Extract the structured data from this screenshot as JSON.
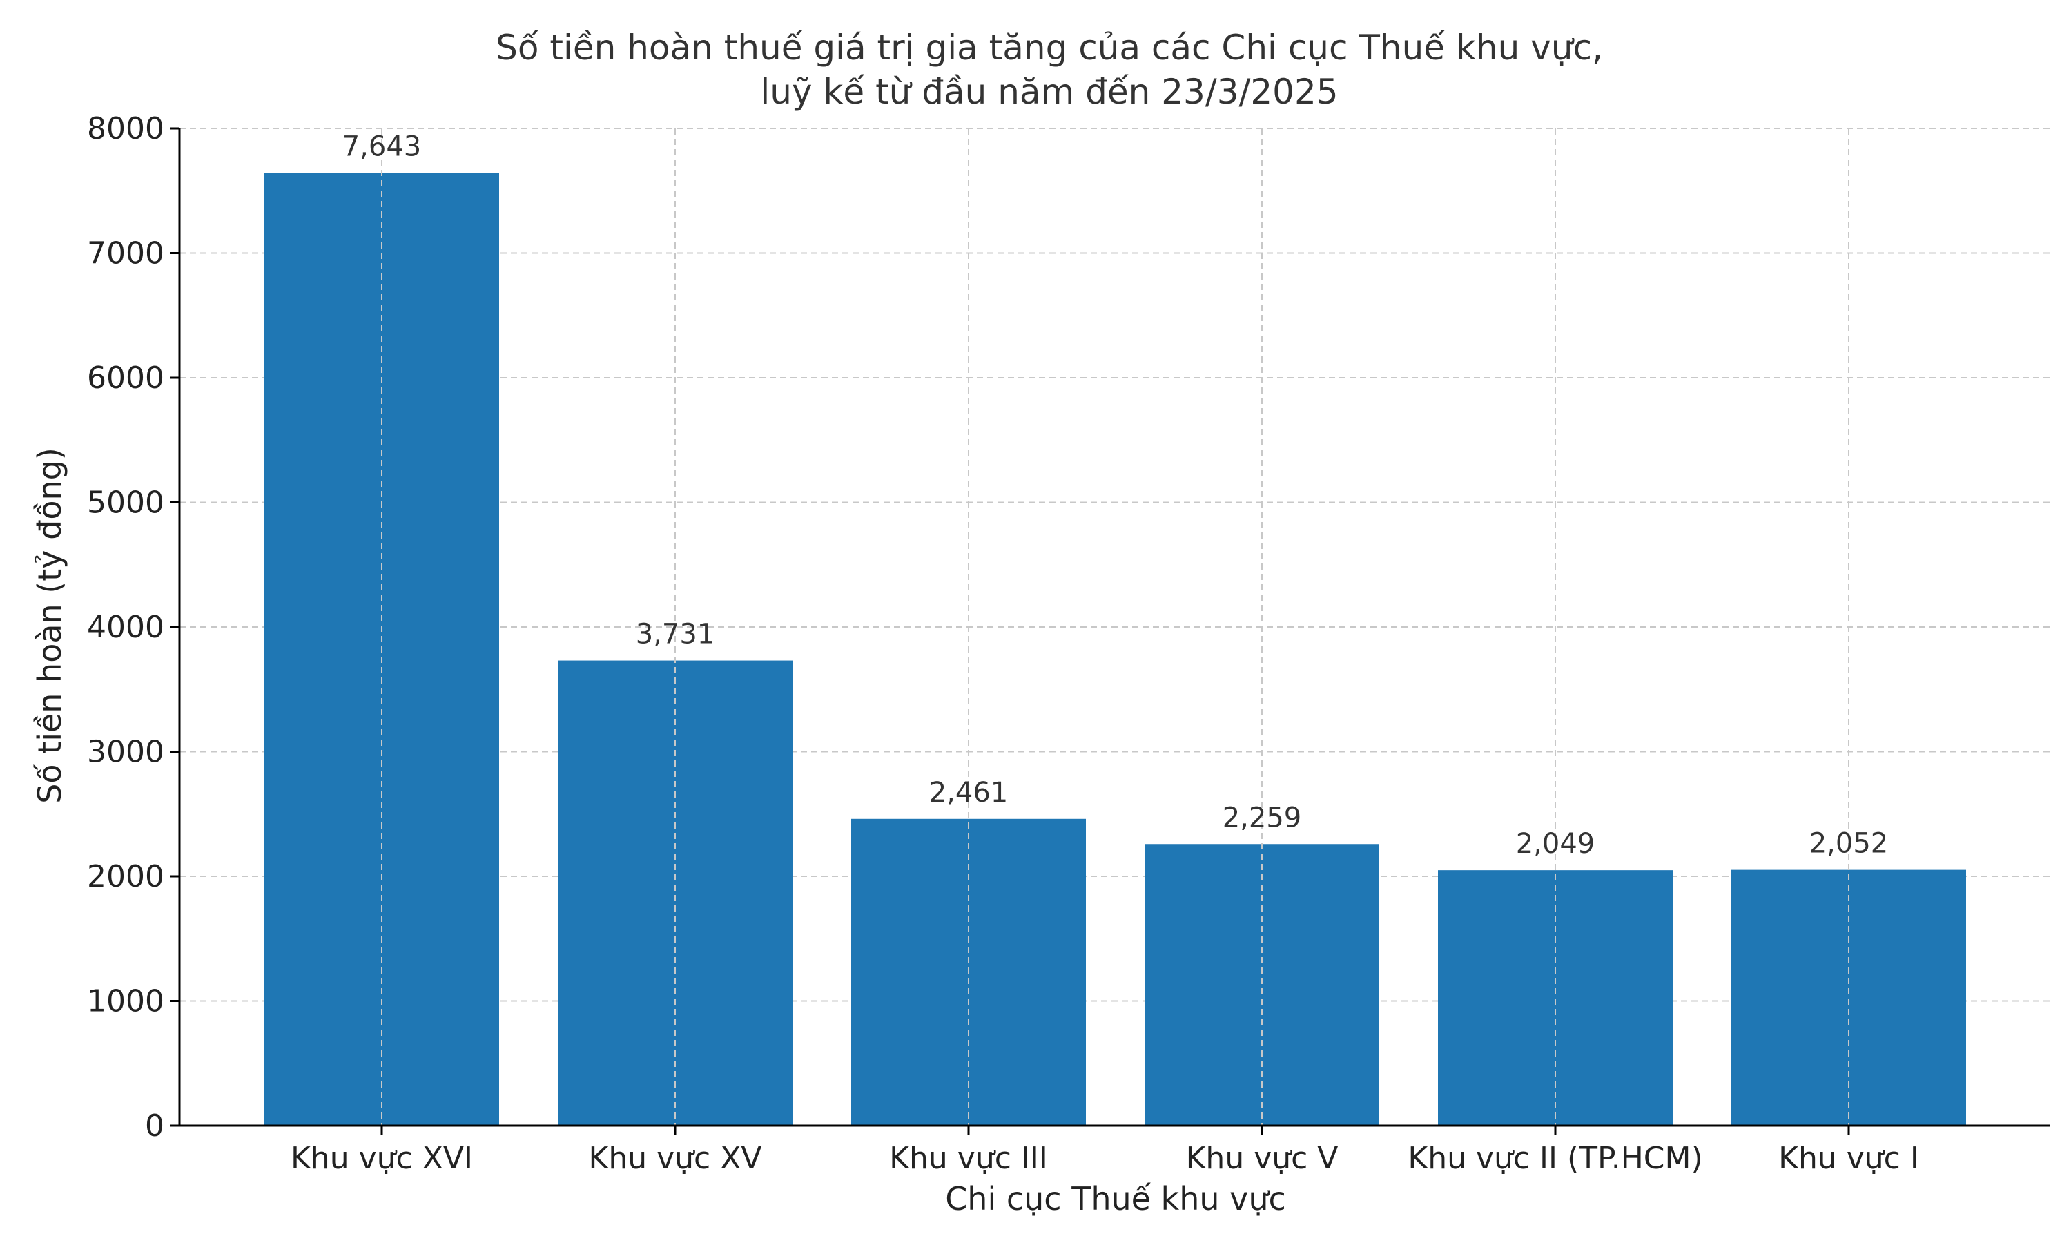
{
  "chart_data": {
    "type": "bar",
    "title_lines": [
      "Số tiền hoàn thuế giá trị gia tăng của các Chi cục Thuế khu vực,",
      "luỹ kế từ đầu năm đến 23/3/2025"
    ],
    "xlabel": "Chi cục Thuế khu vực",
    "ylabel": "Số tiền hoàn (tỷ đồng)",
    "categories": [
      "Khu vực XVI",
      "Khu vực XV",
      "Khu vực III",
      "Khu vực V",
      "Khu vực II (TP.HCM)",
      "Khu vực I"
    ],
    "values": [
      7643,
      3731,
      2461,
      2259,
      2049,
      2052
    ],
    "value_labels": [
      "7,643",
      "3,731",
      "2,461",
      "2,259",
      "2,049",
      "2,052"
    ],
    "ylim": [
      0,
      8000
    ],
    "yticks": [
      0,
      1000,
      2000,
      3000,
      4000,
      5000,
      6000,
      7000,
      8000
    ],
    "grid": true,
    "bar_color": "#1f77b4"
  }
}
